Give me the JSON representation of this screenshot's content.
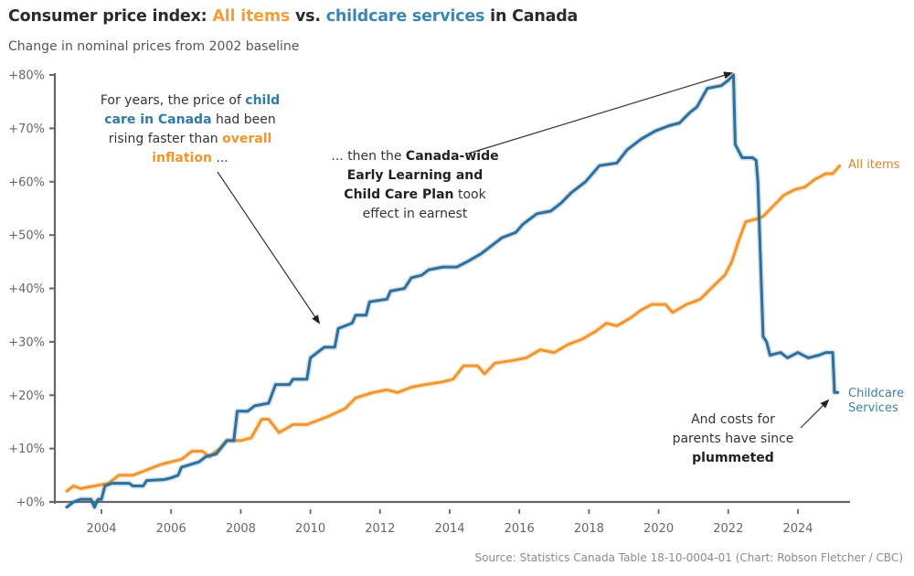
{
  "header": {
    "title_parts": [
      {
        "text": "Consumer price index: ",
        "style": "plain"
      },
      {
        "text": "All items",
        "style": "orange"
      },
      {
        "text": " vs. ",
        "style": "plain"
      },
      {
        "text": "childcare services",
        "style": "blue"
      },
      {
        "text": " in Canada",
        "style": "plain"
      }
    ],
    "subtitle": "Change in nominal prices from 2002 baseline"
  },
  "footer": {
    "source": "Source: Statistics Canada Table 18-10-0004-01 (Chart: Robson Fletcher / CBC)"
  },
  "annotations": {
    "left": {
      "parts": [
        {
          "text": "For years, the price of ",
          "style": "plain"
        },
        {
          "text": "child care in Canada",
          "style": "blue"
        },
        {
          "text": " had been rising faster than ",
          "style": "plain"
        },
        {
          "text": "overall inflation",
          "style": "orange"
        },
        {
          "text": " ...",
          "style": "plain"
        }
      ]
    },
    "middle": {
      "parts": [
        {
          "text": "... then the ",
          "style": "plain"
        },
        {
          "text": "Canada-wide Early Learning and Child Care Plan",
          "style": "dark"
        },
        {
          "text": " took effect in earnest",
          "style": "plain"
        }
      ]
    },
    "right": {
      "parts": [
        {
          "text": "And costs for parents have since ",
          "style": "plain"
        },
        {
          "text": "plummeted",
          "style": "dark"
        }
      ]
    }
  },
  "colors": {
    "all_items": "#f0962c",
    "childcare": "#2f6f9c",
    "axis": "#666666",
    "tick_label": "#666666"
  },
  "chart_data": {
    "type": "line",
    "title": "Consumer price index: All items vs. childcare services in Canada",
    "subtitle": "Change in nominal prices from 2002 baseline",
    "xlabel": "",
    "ylabel": "",
    "xlim": [
      2002.7,
      2026.1
    ],
    "ylim": [
      0,
      80
    ],
    "x_ticks": [
      2004,
      2006,
      2008,
      2010,
      2012,
      2014,
      2016,
      2018,
      2020,
      2022,
      2024
    ],
    "x_tick_labels": [
      "2004",
      "2006",
      "2008",
      "2010",
      "2012",
      "2014",
      "2016",
      "2018",
      "2020",
      "2022",
      "2024"
    ],
    "y_ticks": [
      0,
      10,
      20,
      30,
      40,
      50,
      60,
      70,
      80
    ],
    "y_tick_labels": [
      "+0%",
      "+10%",
      "+20%",
      "+30%",
      "+40%",
      "+50%",
      "+60%",
      "+70%",
      "+80%"
    ],
    "grid": false,
    "legend": "direct labels at line ends (right)",
    "series": [
      {
        "name": "All items",
        "label": "All items",
        "color": "#f0962c",
        "x": [
          2003.0,
          2003.2,
          2003.4,
          2003.8,
          2004.2,
          2004.5,
          2004.9,
          2005.3,
          2005.7,
          2006.0,
          2006.3,
          2006.6,
          2006.9,
          2007.1,
          2007.4,
          2007.6,
          2008.0,
          2008.3,
          2008.6,
          2008.8,
          2009.1,
          2009.5,
          2009.9,
          2010.5,
          2011.0,
          2011.3,
          2011.8,
          2012.2,
          2012.5,
          2012.9,
          2013.3,
          2013.8,
          2014.1,
          2014.4,
          2014.8,
          2015.0,
          2015.3,
          2015.8,
          2016.2,
          2016.6,
          2017.0,
          2017.4,
          2017.8,
          2018.2,
          2018.5,
          2018.8,
          2019.2,
          2019.5,
          2019.8,
          2020.2,
          2020.4,
          2020.8,
          2021.2,
          2021.5,
          2021.9,
          2022.1,
          2022.3,
          2022.5,
          2022.8,
          2023.0,
          2023.3,
          2023.6,
          2023.9,
          2024.2,
          2024.5,
          2024.8,
          2025.0,
          2025.2
        ],
        "values": [
          2,
          3,
          2.5,
          3,
          3.5,
          5,
          5,
          6,
          7,
          7.5,
          8,
          9.5,
          9.5,
          8.5,
          10,
          11.5,
          11.5,
          12,
          15.5,
          15.5,
          13,
          14.5,
          14.5,
          16,
          17.5,
          19.5,
          20.5,
          21,
          20.5,
          21.5,
          22,
          22.5,
          23,
          25.5,
          25.5,
          24,
          26,
          26.5,
          27,
          28.5,
          28,
          29.5,
          30.5,
          32,
          33.5,
          33,
          34.5,
          36,
          37,
          37,
          35.5,
          37,
          38,
          40,
          42.5,
          45,
          49,
          52.5,
          53,
          53.5,
          55.5,
          57.5,
          58.5,
          59,
          60.5,
          61.5,
          61.5,
          63
        ]
      },
      {
        "name": "Childcare Services",
        "label": "Childcare Services",
        "color": "#2f6f9c",
        "x": [
          2003.0,
          2003.2,
          2003.4,
          2003.7,
          2003.8,
          2003.9,
          2004.0,
          2004.1,
          2004.3,
          2004.8,
          2004.9,
          2005.2,
          2005.3,
          2005.8,
          2006.0,
          2006.2,
          2006.3,
          2006.8,
          2007.0,
          2007.3,
          2007.6,
          2007.8,
          2007.9,
          2008.2,
          2008.4,
          2008.8,
          2009.0,
          2009.4,
          2009.5,
          2009.9,
          2010.0,
          2010.4,
          2010.7,
          2010.8,
          2011.2,
          2011.3,
          2011.6,
          2011.7,
          2012.2,
          2012.3,
          2012.7,
          2012.9,
          2013.2,
          2013.4,
          2013.8,
          2014.2,
          2014.5,
          2014.9,
          2015.2,
          2015.5,
          2015.9,
          2016.1,
          2016.5,
          2016.9,
          2017.2,
          2017.5,
          2017.9,
          2018.3,
          2018.8,
          2019.1,
          2019.5,
          2019.9,
          2020.3,
          2020.6,
          2020.9,
          2021.1,
          2021.4,
          2021.8,
          2022.0,
          2022.15,
          2022.2,
          2022.4,
          2022.7,
          2022.8,
          2022.85,
          2023.0,
          2023.1,
          2023.2,
          2023.5,
          2023.7,
          2024.0,
          2024.3,
          2024.6,
          2024.8,
          2025.0,
          2025.05,
          2025.15
        ],
        "values": [
          -1,
          0,
          0.5,
          0.5,
          -1,
          0.5,
          0.5,
          3,
          3.5,
          3.5,
          3,
          3,
          4,
          4.2,
          4.5,
          5,
          6.5,
          7.5,
          8.5,
          9,
          11.5,
          11.5,
          17,
          17,
          18,
          18.5,
          22,
          22,
          23,
          23,
          27,
          29,
          29,
          32.5,
          33.5,
          35,
          35,
          37.5,
          38,
          39.5,
          40,
          42,
          42.5,
          43.5,
          44,
          44,
          45,
          46.5,
          48,
          49.5,
          50.5,
          52,
          54,
          54.5,
          56,
          58,
          60,
          63,
          63.5,
          66,
          68,
          69.5,
          70.5,
          71,
          73,
          74,
          77.5,
          78,
          79,
          80,
          67,
          64.5,
          64.5,
          64,
          60,
          31,
          30,
          27.5,
          28,
          27,
          28,
          27,
          27.5,
          28,
          28,
          20.5,
          20.5
        ]
      }
    ],
    "annotations": [
      "For years, the price of child care in Canada had been rising faster than overall inflation ...",
      "... then the Canada-wide Early Learning and Child Care Plan took effect in earnest",
      "And costs for parents have since plummeted"
    ]
  }
}
